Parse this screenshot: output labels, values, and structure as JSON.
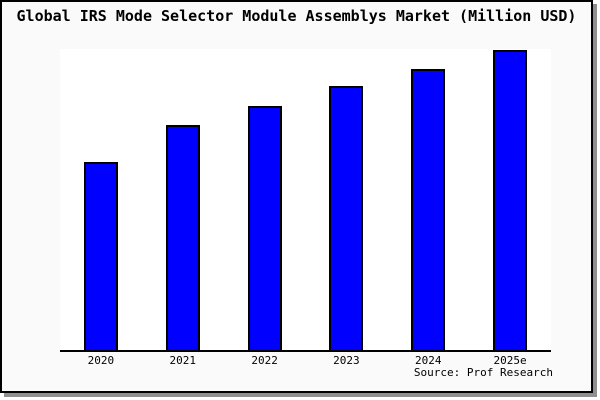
{
  "window": {
    "background_color": "#fafafa",
    "plot_background_color": "#ffffff",
    "border_color": "#000000",
    "shadow_color": "#8f8f8f"
  },
  "title": "Global IRS Mode Selector Module Assemblys Market (Million USD)",
  "source": "Source: Prof Research",
  "chart_data": {
    "type": "bar",
    "title": "Global IRS Mode Selector Module Assemblys Market (Million USD)",
    "categories": [
      "2020",
      "2021",
      "2022",
      "2023",
      "2024",
      "2025e"
    ],
    "values": [
      188,
      225,
      244,
      264,
      281,
      300
    ],
    "unit": "relative height, estimated (no y-axis tick labels shown)",
    "xlabel": "",
    "ylabel": "",
    "ylim": [
      0,
      301
    ],
    "grid": false,
    "legend": "none",
    "bar_color": "#0000ff",
    "bar_border_color": "#000000",
    "source_note": "Source: Prof Research"
  }
}
